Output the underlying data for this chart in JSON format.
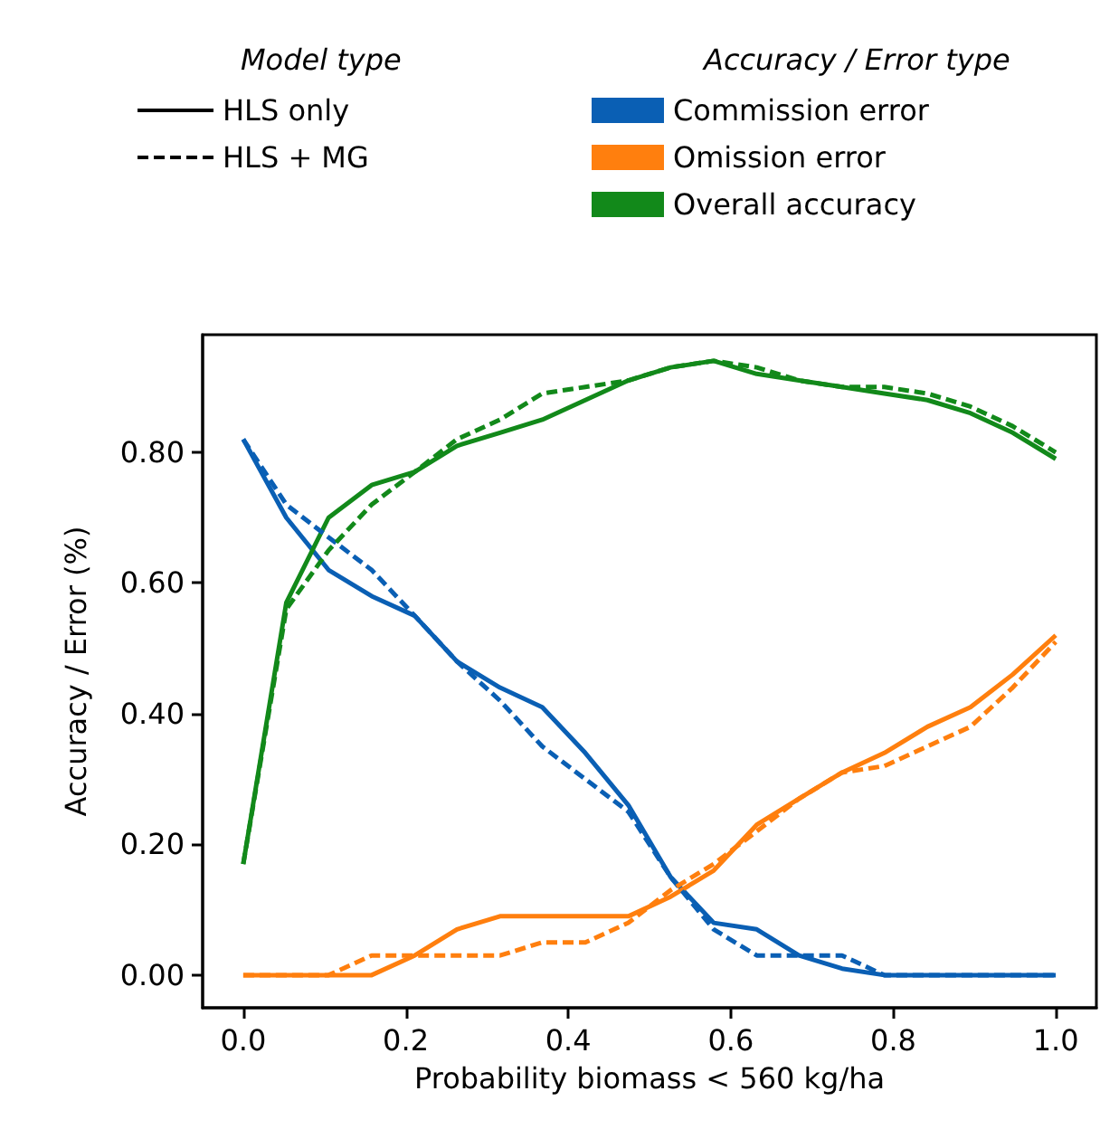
{
  "chart_data": {
    "type": "line",
    "xlabel": "Probability biomass < 560 kg/ha",
    "ylabel": "Accuracy / Error (%)",
    "legend_title": [
      "Model type",
      "Accuracy / Error type"
    ],
    "legend": "top",
    "grid": false,
    "marker": "none",
    "x": [
      0,
      0.053,
      0.105,
      0.158,
      0.211,
      0.263,
      0.316,
      0.368,
      0.421,
      0.474,
      0.526,
      0.579,
      0.632,
      0.684,
      0.737,
      0.789,
      0.842,
      0.895,
      0.947,
      1.0
    ],
    "xlim": [
      -0.05,
      1.05
    ],
    "ylim": [
      -0.05,
      0.98
    ],
    "xticks": [
      {
        "value": 0,
        "label": "0.0"
      },
      {
        "value": 0.2,
        "label": "0.2"
      },
      {
        "value": 0.4,
        "label": "0.4"
      },
      {
        "value": 0.6,
        "label": "0.6"
      },
      {
        "value": 0.8,
        "label": "0.8"
      },
      {
        "value": 1,
        "label": "1.0"
      }
    ],
    "yticks": [
      {
        "value": 0,
        "label": "0.00"
      },
      {
        "value": 0.2,
        "label": "0.20"
      },
      {
        "value": 0.4,
        "label": "0.40"
      },
      {
        "value": 0.6,
        "label": "0.60"
      },
      {
        "value": 0.8,
        "label": "0.80"
      }
    ],
    "series": [
      {
        "name": "HLS only",
        "color": "#000000",
        "line_style": "solid",
        "values": [
          null,
          null,
          null,
          null,
          null,
          null,
          null,
          null,
          null,
          null,
          null,
          null,
          null,
          null,
          null,
          null,
          null,
          null,
          null,
          null
        ]
      },
      {
        "name": "HLS + MG",
        "color": "#000000",
        "line_style": "dashed",
        "values": [
          null,
          null,
          null,
          null,
          null,
          null,
          null,
          null,
          null,
          null,
          null,
          null,
          null,
          null,
          null,
          null,
          null,
          null,
          null,
          null
        ]
      },
      {
        "name": "Commission error",
        "color": "#0a5fb4",
        "line_style": "solid",
        "values": [
          0.82,
          0.7,
          0.62,
          0.58,
          0.55,
          0.48,
          0.44,
          0.41,
          0.34,
          0.26,
          0.15,
          0.08,
          0.07,
          0.03,
          0.01,
          0,
          0,
          0,
          0,
          0
        ]
      },
      {
        "name": "Omission error",
        "color": "#ff7f0e",
        "line_style": "solid",
        "values": [
          0,
          0,
          0,
          0,
          0.03,
          0.07,
          0.09,
          0.09,
          0.09,
          0.09,
          0.12,
          0.16,
          0.23,
          0.27,
          0.31,
          0.34,
          0.38,
          0.41,
          0.46,
          0.52
        ]
      },
      {
        "name": "Overall accuracy",
        "color": "#12891a",
        "line_style": "solid",
        "values": [
          0.17,
          0.57,
          0.7,
          0.75,
          0.77,
          0.81,
          0.83,
          0.85,
          0.88,
          0.91,
          0.93,
          0.94,
          0.92,
          0.91,
          0.9,
          0.89,
          0.88,
          0.86,
          0.83,
          0.79
        ]
      },
      {
        "color": "#0a5fb4",
        "line_style": "dashed",
        "values": [
          0.82,
          0.72,
          0.67,
          0.62,
          0.55,
          0.48,
          0.42,
          0.35,
          0.3,
          0.25,
          0.15,
          0.07,
          0.03,
          0.03,
          0.03,
          0,
          0,
          0,
          0,
          0
        ]
      },
      {
        "color": "#ff7f0e",
        "line_style": "dashed",
        "values": [
          0,
          0,
          0,
          0.03,
          0.03,
          0.03,
          0.03,
          0.05,
          0.05,
          0.08,
          0.13,
          0.17,
          0.22,
          0.27,
          0.31,
          0.32,
          0.35,
          0.38,
          0.44,
          0.51
        ]
      },
      {
        "color": "#12891a",
        "line_style": "dashed",
        "values": [
          0.17,
          0.56,
          0.65,
          0.72,
          0.77,
          0.82,
          0.85,
          0.89,
          0.9,
          0.91,
          0.93,
          0.94,
          0.93,
          0.91,
          0.9,
          0.9,
          0.89,
          0.87,
          0.84,
          0.8
        ]
      }
    ]
  }
}
